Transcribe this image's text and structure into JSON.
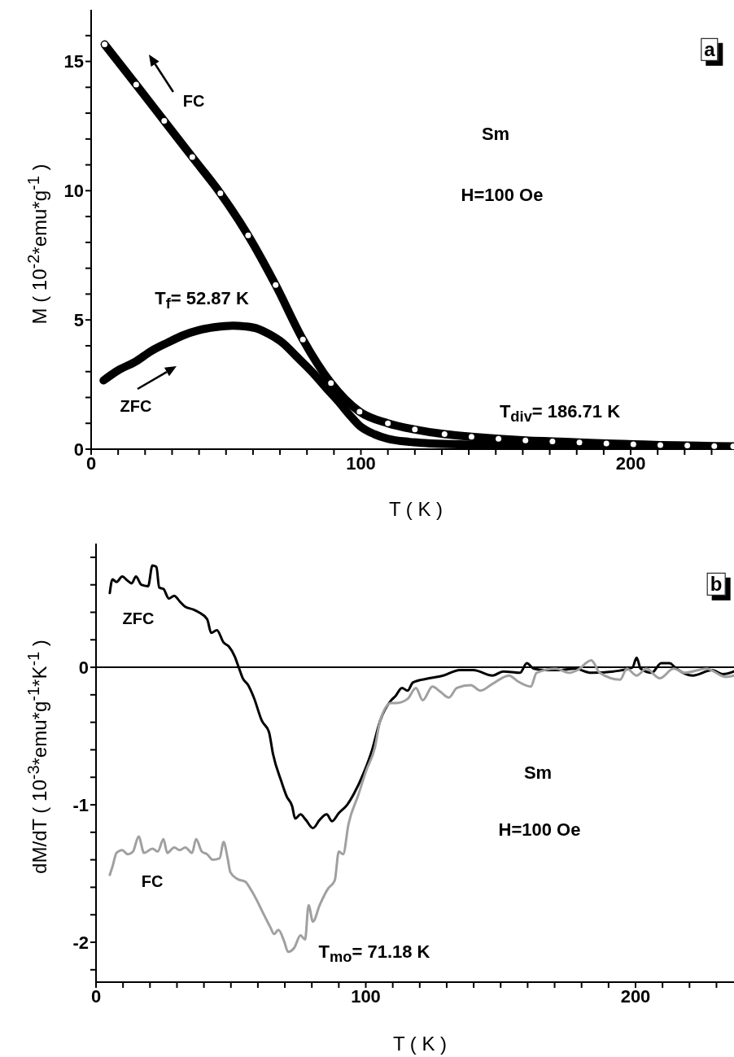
{
  "chart_data": [
    {
      "type": "line",
      "xlabel": "T ( K )",
      "ylabel": "M ( 10$^{-2}$*emu*g$^{-1}$ )",
      "xlim": [
        0,
        238.3
      ],
      "xticks": [
        0,
        {
          "value": 10,
          "label": null
        },
        {
          "value": 20,
          "label": null
        },
        {
          "value": 30,
          "label": null
        },
        {
          "value": 40,
          "label": null
        },
        {
          "value": 50,
          "label": null
        },
        {
          "value": 60,
          "label": null
        },
        {
          "value": 70,
          "label": null
        },
        {
          "value": 80,
          "label": null
        },
        {
          "value": 90,
          "label": null
        },
        100,
        {
          "value": 110,
          "label": null
        },
        {
          "value": 120,
          "label": null
        },
        {
          "value": 130,
          "label": null
        },
        {
          "value": 140,
          "label": null
        },
        {
          "value": 150,
          "label": null
        },
        {
          "value": 160,
          "label": null
        },
        {
          "value": 170,
          "label": null
        },
        {
          "value": 180,
          "label": null
        },
        {
          "value": 190,
          "label": null
        },
        200,
        {
          "value": 210,
          "label": null
        },
        {
          "value": 220,
          "label": null
        },
        {
          "value": 230,
          "label": null
        }
      ],
      "ylim": [
        0,
        17
      ],
      "yticks": [
        0,
        {
          "value": 1,
          "label": null
        },
        {
          "value": 2,
          "label": null
        },
        {
          "value": 3,
          "label": null
        },
        {
          "value": 4,
          "label": null
        },
        5,
        {
          "value": 6,
          "label": null
        },
        {
          "value": 7,
          "label": null
        },
        {
          "value": 8,
          "label": null
        },
        {
          "value": 9,
          "label": null
        },
        10,
        {
          "value": 11,
          "label": null
        },
        {
          "value": 12,
          "label": null
        },
        {
          "value": 13,
          "label": null
        },
        {
          "value": 14,
          "label": null
        },
        15,
        {
          "value": 16,
          "label": null
        }
      ],
      "series": [
        {
          "name": "FC",
          "color": "#000000",
          "marker": "circle",
          "x": [
            5,
            16.7,
            27.1,
            37.5,
            47.9,
            58.2,
            68.4,
            78.5,
            88.9,
            99.5,
            110,
            120,
            131,
            141,
            151,
            161,
            171,
            181,
            191,
            201,
            211,
            221,
            231,
            238
          ],
          "values": [
            15.66,
            14.1,
            12.7,
            11.3,
            9.9,
            8.27,
            6.35,
            4.24,
            2.56,
            1.45,
            1.0,
            0.76,
            0.58,
            0.48,
            0.4,
            0.34,
            0.3,
            0.26,
            0.22,
            0.19,
            0.16,
            0.14,
            0.12,
            0.11
          ]
        },
        {
          "name": "ZFC",
          "color": "#000000",
          "x": [
            4.6,
            10,
            16.7,
            22,
            28.3,
            34,
            39.8,
            46,
            52.5,
            57,
            61.7,
            66,
            70.9,
            76,
            82.5,
            87,
            91.7,
            96,
            99.8,
            105,
            110,
            118,
            126,
            140,
            160,
            180,
            200,
            220,
            238
          ],
          "values": [
            2.66,
            3.05,
            3.4,
            3.78,
            4.12,
            4.4,
            4.6,
            4.72,
            4.78,
            4.75,
            4.66,
            4.45,
            4.12,
            3.6,
            2.92,
            2.38,
            1.84,
            1.3,
            0.88,
            0.58,
            0.4,
            0.28,
            0.22,
            0.18,
            0.14,
            0.11,
            0.08,
            0.06,
            0.05
          ]
        }
      ],
      "annotations": [
        "Sm",
        "H=100 Oe",
        "T$_{f}$= 52.87 K",
        "T$_{div}$= 186.71 K",
        "a"
      ]
    },
    {
      "type": "line",
      "xlabel": "T ( K )",
      "ylabel": "dM/dT ( 10$^{-3}$*emu*g$^{-1}$*K$^{-1}$ )",
      "xlim": [
        0,
        236.5
      ],
      "xticks": [
        0,
        {
          "value": 10,
          "label": null
        },
        {
          "value": 20,
          "label": null
        },
        {
          "value": 30,
          "label": null
        },
        {
          "value": 40,
          "label": null
        },
        {
          "value": 50,
          "label": null
        },
        {
          "value": 60,
          "label": null
        },
        {
          "value": 70,
          "label": null
        },
        {
          "value": 80,
          "label": null
        },
        {
          "value": 90,
          "label": null
        },
        100,
        {
          "value": 110,
          "label": null
        },
        {
          "value": 120,
          "label": null
        },
        {
          "value": 130,
          "label": null
        },
        {
          "value": 140,
          "label": null
        },
        {
          "value": 150,
          "label": null
        },
        {
          "value": 160,
          "label": null
        },
        {
          "value": 170,
          "label": null
        },
        {
          "value": 180,
          "label": null
        },
        {
          "value": 190,
          "label": null
        },
        200,
        {
          "value": 210,
          "label": null
        },
        {
          "value": 220,
          "label": null
        },
        {
          "value": 230,
          "label": null
        }
      ],
      "ylim": [
        -2.29,
        0.9
      ],
      "yticks": [
        {
          "value": -2.2,
          "label": null
        },
        -2,
        {
          "value": -1.8,
          "label": null
        },
        {
          "value": -1.6,
          "label": null
        },
        {
          "value": -1.4,
          "label": null
        },
        {
          "value": -1.2,
          "label": null
        },
        -1,
        {
          "value": -0.8,
          "label": null
        },
        {
          "value": -0.6,
          "label": null
        },
        {
          "value": -0.4,
          "label": null
        },
        {
          "value": -0.2,
          "label": null
        },
        0,
        {
          "value": 0.2,
          "label": null
        },
        {
          "value": 0.4,
          "label": null
        },
        {
          "value": 0.6,
          "label": null
        },
        {
          "value": 0.8,
          "label": null
        }
      ],
      "ref_lines": [
        {
          "axis": "y",
          "value": 0,
          "color": "#000000"
        }
      ],
      "series": [
        {
          "name": "ZFC",
          "color": "#000000",
          "x": [
            5.1,
            6.1,
            7.6,
            9.7,
            11.7,
            13.2,
            14.8,
            16.8,
            19.3,
            20.9,
            22.4,
            23.4,
            25,
            27,
            29,
            31,
            33.1,
            36.1,
            38.1,
            41.2,
            42.7,
            44.8,
            47.3,
            49.3,
            51.4,
            52.9,
            54.4,
            56.4,
            58.5,
            61.5,
            64.1,
            65.6,
            68.7,
            70.7,
            72.7,
            73.8,
            75.8,
            77.8,
            80.4,
            82.9,
            85.5,
            87.5,
            90,
            93.1,
            95.6,
            99.2,
            102.2,
            105.3,
            109.4,
            111,
            113.4,
            115.5,
            117.5,
            123.5,
            128.7,
            134.8,
            139.9,
            147,
            151,
            157.2,
            159.7,
            162.3,
            166.3,
            172.4,
            177.5,
            183.6,
            191.8,
            198.9,
            200.4,
            201.9,
            206,
            209.5,
            212.6,
            215.1,
            221.2,
            228.4,
            232.4,
            236.5
          ],
          "values": [
            0.54,
            0.64,
            0.62,
            0.66,
            0.63,
            0.61,
            0.66,
            0.6,
            0.59,
            0.74,
            0.73,
            0.58,
            0.57,
            0.5,
            0.52,
            0.48,
            0.44,
            0.42,
            0.4,
            0.35,
            0.25,
            0.27,
            0.18,
            0.15,
            0.08,
            0,
            -0.08,
            -0.13,
            -0.22,
            -0.39,
            -0.47,
            -0.63,
            -0.83,
            -0.94,
            -1.01,
            -1.1,
            -1.07,
            -1.11,
            -1.17,
            -1.11,
            -1.07,
            -1.12,
            -1.06,
            -1,
            -0.92,
            -0.77,
            -0.61,
            -0.39,
            -0.24,
            -0.21,
            -0.15,
            -0.17,
            -0.11,
            -0.08,
            -0.06,
            -0.02,
            -0.02,
            -0.06,
            -0.03,
            -0.04,
            0.03,
            -0.01,
            -0.02,
            -0.02,
            -0.01,
            -0.04,
            -0.03,
            0,
            0.07,
            -0.01,
            -0.04,
            0.03,
            0.03,
            -0.01,
            -0.06,
            -0.02,
            -0.05,
            -0.03
          ]
        },
        {
          "name": "FC",
          "color": "#a0a0a0",
          "x": [
            5.1,
            6.1,
            7.6,
            9.7,
            11.7,
            13.7,
            15.8,
            17.8,
            20.9,
            22.9,
            25,
            26.4,
            29,
            31,
            33.1,
            35.6,
            37.1,
            39.2,
            41.2,
            43.2,
            45.8,
            47.3,
            48.8,
            49.8,
            52.4,
            55.4,
            57.5,
            59.5,
            61.5,
            64.6,
            66,
            67.6,
            69.7,
            71.2,
            73.5,
            75.8,
            77.5,
            78.8,
            80.4,
            82.9,
            86,
            88.5,
            90,
            91.6,
            93.6,
            97.2,
            100.2,
            103.3,
            105.3,
            109.4,
            111.5,
            115.5,
            118.6,
            121.1,
            124.7,
            127.8,
            130.8,
            133.8,
            138.9,
            142.5,
            147,
            153.1,
            156.2,
            161.2,
            163.3,
            170.4,
            175.5,
            178.5,
            183.6,
            186.7,
            194.3,
            196.8,
            200.4,
            204,
            209,
            214.1,
            218.2,
            226.3,
            233.4,
            236.5
          ],
          "values": [
            -1.51,
            -1.45,
            -1.35,
            -1.33,
            -1.36,
            -1.34,
            -1.23,
            -1.35,
            -1.32,
            -1.34,
            -1.25,
            -1.35,
            -1.31,
            -1.33,
            -1.31,
            -1.35,
            -1.25,
            -1.34,
            -1.36,
            -1.4,
            -1.39,
            -1.27,
            -1.39,
            -1.49,
            -1.54,
            -1.56,
            -1.62,
            -1.69,
            -1.77,
            -1.89,
            -1.94,
            -1.91,
            -1.99,
            -2.07,
            -2.04,
            -1.95,
            -1.98,
            -1.73,
            -1.85,
            -1.73,
            -1.61,
            -1.55,
            -1.34,
            -1.36,
            -1.14,
            -0.93,
            -0.75,
            -0.59,
            -0.39,
            -0.26,
            -0.26,
            -0.23,
            -0.15,
            -0.24,
            -0.14,
            -0.18,
            -0.22,
            -0.15,
            -0.13,
            -0.17,
            -0.12,
            -0.06,
            -0.1,
            -0.14,
            -0.04,
            -0.01,
            -0.04,
            -0.02,
            0.05,
            -0.04,
            -0.09,
            -0.01,
            -0.06,
            -0.01,
            -0.08,
            -0.01,
            -0.04,
            -0.01,
            -0.07,
            -0.06
          ]
        }
      ],
      "annotations": [
        "Sm",
        "H=100 Oe",
        "T$_{mo}$= 71.18 K",
        "b"
      ]
    }
  ]
}
